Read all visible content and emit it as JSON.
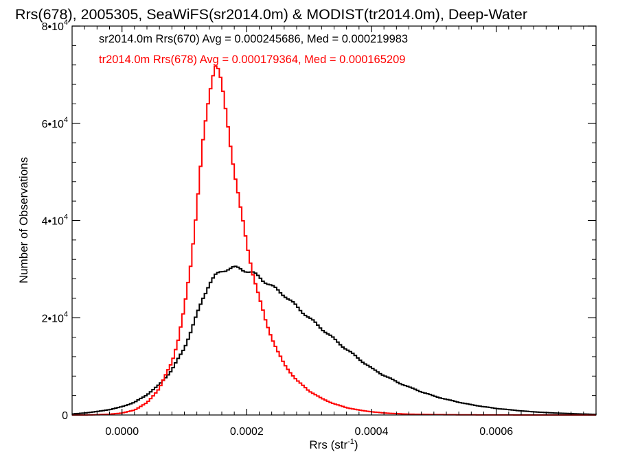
{
  "chart_data": {
    "type": "line",
    "title": "Rrs(678), 2005305, SeaWiFS(sr2014.0m) & MODIST(tr2014.0m), Deep-Water",
    "xlabel": "Rrs (str",
    "xlabel_superscript": "-1",
    "xlabel_suffix": ")",
    "ylabel": "Number of Observations",
    "xlim": [
      -8e-05,
      0.00076
    ],
    "ylim": [
      0,
      80000
    ],
    "x_ticks": [
      {
        "value": 0.0,
        "label": "0.0000"
      },
      {
        "value": 0.0002,
        "label": "0.0002"
      },
      {
        "value": 0.0004,
        "label": "0.0004"
      },
      {
        "value": 0.0006,
        "label": "0.0006"
      }
    ],
    "y_ticks": [
      {
        "value": 0,
        "base": "0",
        "exp": ""
      },
      {
        "value": 20000,
        "base": "2•10",
        "exp": "4"
      },
      {
        "value": 40000,
        "base": "4•10",
        "exp": "4"
      },
      {
        "value": 60000,
        "base": "6•10",
        "exp": "4"
      },
      {
        "value": 80000,
        "base": "8•10",
        "exp": "4"
      }
    ],
    "grid": false,
    "legend_position": "top-left",
    "series": [
      {
        "name": "sr2014.0m Rrs(670) Avg = 0.000245686, Med = 0.000219983",
        "color": "#000000",
        "x": [
          -8e-05,
          -6e-05,
          -4e-05,
          -2e-05,
          0.0,
          2e-05,
          4e-05,
          6e-05,
          8e-05,
          0.0001,
          0.00011,
          0.00012,
          0.00013,
          0.00014,
          0.00015,
          0.00016,
          0.00017,
          0.00018,
          0.00019,
          0.0002,
          0.00021,
          0.00022,
          0.00023,
          0.00024,
          0.00025,
          0.00026,
          0.00028,
          0.0003,
          0.00032,
          0.00034,
          0.00036,
          0.00038,
          0.0004,
          0.00042,
          0.00044,
          0.00046,
          0.00048,
          0.0005,
          0.00052,
          0.00054,
          0.00056,
          0.00058,
          0.0006,
          0.00062,
          0.00064,
          0.00066,
          0.00068,
          0.0007,
          0.00072,
          0.00074,
          0.00076
        ],
        "values": [
          200,
          400,
          700,
          1100,
          1700,
          2600,
          4200,
          6300,
          9300,
          13800,
          17000,
          20500,
          24000,
          26800,
          28400,
          29400,
          29900,
          30100,
          30000,
          29700,
          29200,
          28500,
          27600,
          26700,
          25800,
          24900,
          22400,
          20000,
          17700,
          15500,
          13400,
          11500,
          9600,
          8200,
          6900,
          5800,
          4800,
          3900,
          3200,
          2600,
          2100,
          1700,
          1350,
          1100,
          850,
          650,
          500,
          380,
          280,
          190,
          120
        ]
      },
      {
        "name": "tr2014.0m Rrs(678) Avg = 0.000179364, Med = 0.000165209",
        "color": "#ff0000",
        "x": [
          -8e-05,
          -6e-05,
          -4e-05,
          -2e-05,
          0.0,
          2e-05,
          4e-05,
          6e-05,
          8e-05,
          9e-05,
          0.0001,
          0.00011,
          0.00012,
          0.00013,
          0.00014,
          0.000145,
          0.00015,
          0.000155,
          0.00016,
          0.00017,
          0.00018,
          0.00019,
          0.0002,
          0.00021,
          0.00022,
          0.00023,
          0.00024,
          0.00025,
          0.00026,
          0.00028,
          0.0003,
          0.00032,
          0.00034,
          0.00036,
          0.00038,
          0.0004,
          0.00042,
          0.00044,
          0.00046,
          0.0005,
          0.00054,
          0.00058,
          0.00062,
          0.00066,
          0.0007,
          0.00076
        ],
        "values": [
          0,
          0,
          50,
          150,
          400,
          1000,
          2500,
          5500,
          11000,
          15500,
          22000,
          31000,
          43000,
          56000,
          66000,
          70000,
          72000,
          70500,
          67000,
          59000,
          50000,
          42000,
          35000,
          29000,
          24000,
          19500,
          16000,
          13000,
          10500,
          7200,
          5000,
          3400,
          2300,
          1500,
          1000,
          650,
          420,
          270,
          170,
          80,
          40,
          20,
          10,
          5,
          0,
          0
        ]
      }
    ]
  }
}
